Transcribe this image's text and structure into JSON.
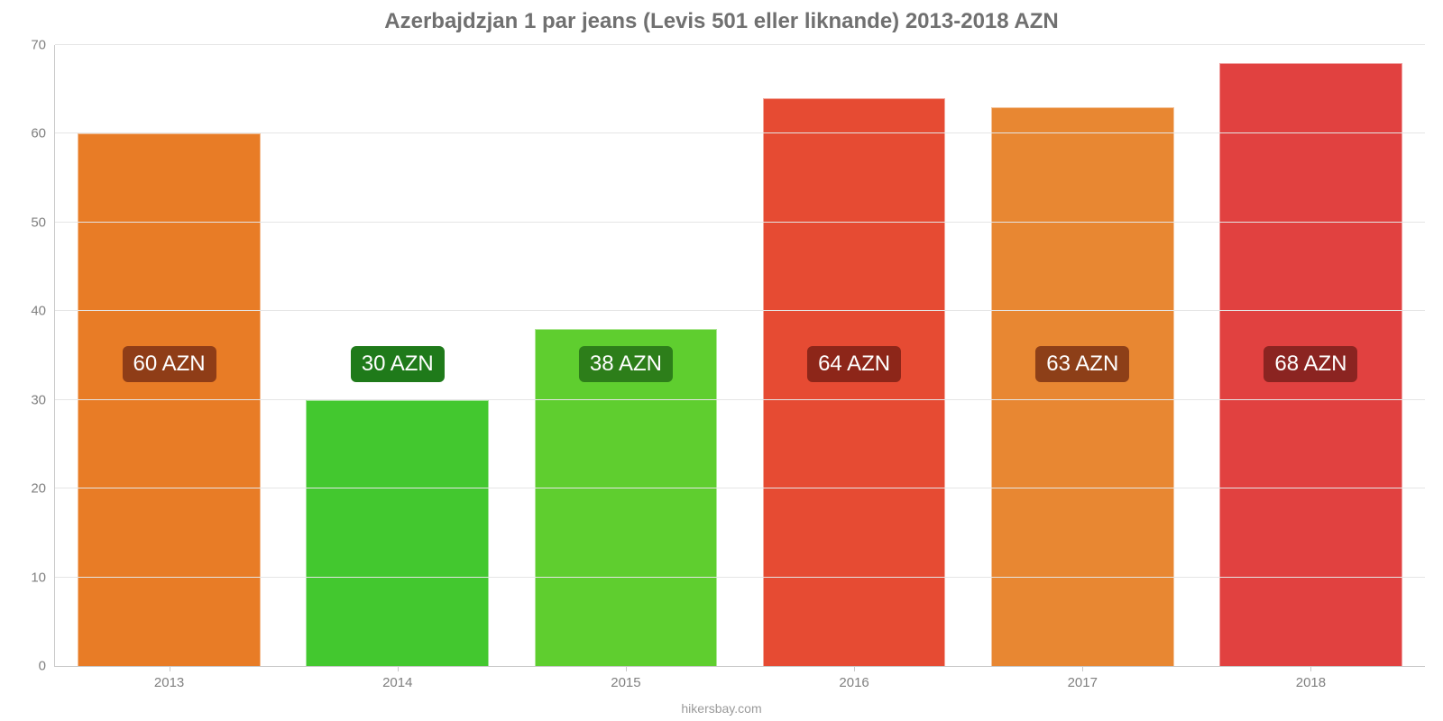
{
  "chart": {
    "type": "bar",
    "title": "Azerbajdzjan 1 par jeans (Levis 501 eller liknande) 2013-2018 AZN",
    "title_fontsize": 24,
    "title_color": "#707070",
    "source": "hikersbay.com",
    "background_color": "#ffffff",
    "grid_color": "#e5e5e5",
    "axis_color": "#c9c9c9",
    "tick_label_color": "#808080",
    "tick_fontsize": 15,
    "categories": [
      "2013",
      "2014",
      "2015",
      "2016",
      "2017",
      "2018"
    ],
    "values": [
      60,
      30,
      38,
      64,
      63,
      68
    ],
    "value_labels": [
      "60 AZN",
      "30 AZN",
      "38 AZN",
      "64 AZN",
      "63 AZN",
      "68 AZN"
    ],
    "bar_colors": [
      "#e87c26",
      "#43c82f",
      "#5fce2f",
      "#e64b33",
      "#e88732",
      "#e14140"
    ],
    "label_bg_colors": [
      "#8f3d17",
      "#1f7a1a",
      "#2d7e1a",
      "#8d2619",
      "#8d3f18",
      "#8b2421"
    ],
    "label_fontsize": 24,
    "ylim": [
      0,
      70
    ],
    "ytick_step": 10,
    "yticks": [
      0,
      10,
      20,
      30,
      40,
      50,
      60,
      70
    ],
    "bar_width_pct": 80,
    "label_y_value": 34
  }
}
